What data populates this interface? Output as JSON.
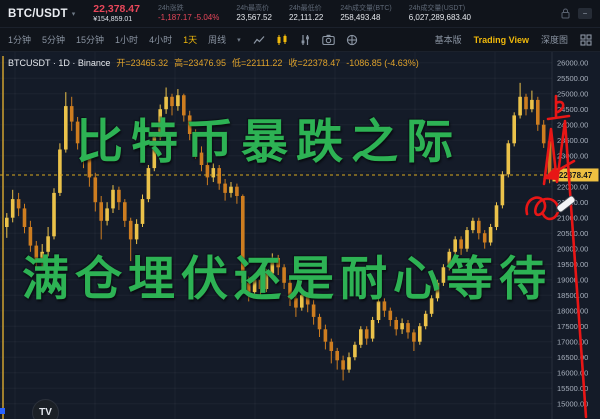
{
  "symbol_bar": {
    "pair": "BTC/USDT",
    "last_price": "22,378.47",
    "last_price_fiat": "¥154,859.01",
    "stats": [
      {
        "label": "24h涨跌",
        "value": "-1,187.17 -5.04%",
        "negative": true
      },
      {
        "label": "24h最高价",
        "value": "23,567.52",
        "negative": false
      },
      {
        "label": "24h最低价",
        "value": "22,111.22",
        "negative": false
      },
      {
        "label": "24h成交量(BTC)",
        "value": "258,493.48",
        "negative": false
      },
      {
        "label": "24h成交量(USDT)",
        "value": "6,027,289,683.40",
        "negative": false
      }
    ],
    "minimize_label": "−"
  },
  "toolbar": {
    "intervals": [
      {
        "label": "1分钟",
        "active": false
      },
      {
        "label": "5分钟",
        "active": false
      },
      {
        "label": "15分钟",
        "active": false
      },
      {
        "label": "1小时",
        "active": false
      },
      {
        "label": "4小时",
        "active": false
      },
      {
        "label": "1天",
        "active": true
      },
      {
        "label": "周线",
        "active": false
      }
    ],
    "view_modes": [
      {
        "label": "基本版",
        "active": false
      },
      {
        "label": "Trading View",
        "active": true
      },
      {
        "label": "深度图",
        "active": false
      }
    ]
  },
  "legend": {
    "title": "BTCUSDT · 1D · Binance",
    "ohlc": [
      "开=23465.32",
      "高=23476.95",
      "低=22111.22",
      "收=22378.47",
      "-1086.85 (-4.63%)"
    ]
  },
  "overlay_text": {
    "line1": "比特币暴跌之际",
    "line2": "满仓埋伏还是耐心等待"
  },
  "tv_logo": "TV",
  "colors": {
    "candle_up": "#ebc24a",
    "candle_down": "#cd7d20",
    "accent_yellow": "#f0b90b",
    "price_red": "#e8475a",
    "annotation_red": "#e81616",
    "overlay_green": "#2db254",
    "price_tag_bg": "#eec041"
  },
  "chart_data": {
    "type": "candlestick",
    "symbol": "BTCUSDT",
    "interval": "1D",
    "exchange": "Binance",
    "last_price": 22378.47,
    "price_tag": "22378.47",
    "y_axis": {
      "max": 26000,
      "min": 15000,
      "step": 500,
      "labels": [
        "26000.00",
        "25500.00",
        "25000.00",
        "24500.00",
        "24000.00",
        "23500.00",
        "23000.00",
        "22500.00",
        "22000.00",
        "21500.00",
        "21000.00",
        "20500.00",
        "20000.00",
        "19500.00",
        "19000.00",
        "18500.00",
        "18000.00",
        "17500.00",
        "17000.00",
        "16500.00",
        "16000.00",
        "15500.00",
        "15000.00"
      ]
    },
    "candles": [
      [
        20700,
        21150,
        20350,
        21000
      ],
      [
        21000,
        21900,
        20850,
        21600
      ],
      [
        21600,
        21800,
        21050,
        21300
      ],
      [
        21300,
        21450,
        20500,
        20700
      ],
      [
        20700,
        20900,
        19900,
        20100
      ],
      [
        20100,
        20250,
        19350,
        19600
      ],
      [
        19600,
        20150,
        19400,
        19900
      ],
      [
        19900,
        20700,
        19750,
        20400
      ],
      [
        20400,
        21950,
        20300,
        21800
      ],
      [
        21800,
        23400,
        21700,
        23200
      ],
      [
        23200,
        25050,
        23100,
        24600
      ],
      [
        24600,
        24900,
        23800,
        24100
      ],
      [
        24100,
        24250,
        23200,
        23400
      ],
      [
        23400,
        23600,
        22600,
        22900
      ],
      [
        22900,
        23050,
        22000,
        22300
      ],
      [
        22300,
        22450,
        21200,
        21500
      ],
      [
        21500,
        21700,
        20300,
        20900
      ],
      [
        20900,
        21500,
        20750,
        21300
      ],
      [
        21300,
        22050,
        21150,
        21900
      ],
      [
        21900,
        22000,
        21250,
        21500
      ],
      [
        21500,
        21600,
        20700,
        20900
      ],
      [
        20900,
        21000,
        19600,
        20300
      ],
      [
        20300,
        20950,
        20150,
        20800
      ],
      [
        20800,
        21750,
        20700,
        21600
      ],
      [
        21600,
        22700,
        21500,
        22600
      ],
      [
        22600,
        23700,
        22500,
        23600
      ],
      [
        23600,
        24650,
        23500,
        24500
      ],
      [
        24500,
        25200,
        24350,
        24900
      ],
      [
        24900,
        25000,
        24300,
        24600
      ],
      [
        24600,
        25150,
        24450,
        24950
      ],
      [
        24950,
        25000,
        24100,
        24300
      ],
      [
        24300,
        24450,
        23500,
        23700
      ],
      [
        23700,
        23850,
        22900,
        23100
      ],
      [
        23100,
        23300,
        22500,
        22700
      ],
      [
        22700,
        22850,
        22050,
        22300
      ],
      [
        22300,
        22750,
        22150,
        22600
      ],
      [
        22600,
        22700,
        21900,
        22100
      ],
      [
        22100,
        22250,
        21550,
        21800
      ],
      [
        21800,
        22150,
        21650,
        22000
      ],
      [
        22000,
        22100,
        21450,
        21700
      ],
      [
        21700,
        21750,
        18700,
        18900
      ],
      [
        18900,
        19100,
        18300,
        18600
      ],
      [
        18600,
        19150,
        18450,
        19000
      ],
      [
        19000,
        19150,
        18400,
        18700
      ],
      [
        18700,
        19350,
        18600,
        19200
      ],
      [
        19200,
        19850,
        19100,
        19700
      ],
      [
        19700,
        19800,
        19150,
        19400
      ],
      [
        19400,
        19500,
        18700,
        18900
      ],
      [
        18900,
        19050,
        18150,
        18400
      ],
      [
        18400,
        18550,
        17800,
        18100
      ],
      [
        18100,
        18650,
        18000,
        18500
      ],
      [
        18500,
        18600,
        17950,
        18200
      ],
      [
        18200,
        18350,
        17550,
        17800
      ],
      [
        17800,
        17900,
        17150,
        17400
      ],
      [
        17400,
        17550,
        16750,
        17000
      ],
      [
        17000,
        17100,
        16300,
        16700
      ],
      [
        16700,
        16800,
        16100,
        16400
      ],
      [
        16400,
        16550,
        15750,
        16100
      ],
      [
        16100,
        16650,
        16000,
        16500
      ],
      [
        16500,
        17000,
        16400,
        16900
      ],
      [
        16900,
        17500,
        16800,
        17400
      ],
      [
        17400,
        17500,
        16900,
        17100
      ],
      [
        17100,
        17800,
        17000,
        17700
      ],
      [
        17700,
        18400,
        17600,
        18300
      ],
      [
        18300,
        18400,
        17800,
        18000
      ],
      [
        18000,
        18100,
        17500,
        17700
      ],
      [
        17700,
        17800,
        17200,
        17400
      ],
      [
        17400,
        17750,
        17250,
        17600
      ],
      [
        17600,
        17700,
        17100,
        17300
      ],
      [
        17300,
        17400,
        16700,
        17000
      ],
      [
        17000,
        17600,
        16900,
        17500
      ],
      [
        17500,
        18000,
        17400,
        17900
      ],
      [
        17900,
        18500,
        17800,
        18400
      ],
      [
        18400,
        19000,
        18300,
        18900
      ],
      [
        18900,
        19500,
        18800,
        19400
      ],
      [
        19400,
        20000,
        19300,
        19900
      ],
      [
        19900,
        20400,
        19800,
        20300
      ],
      [
        20300,
        20400,
        19800,
        20000
      ],
      [
        20000,
        20700,
        19900,
        20600
      ],
      [
        20600,
        21000,
        20500,
        20900
      ],
      [
        20900,
        21000,
        20300,
        20500
      ],
      [
        20500,
        20600,
        20000,
        20200
      ],
      [
        20200,
        20800,
        20100,
        20700
      ],
      [
        20700,
        21500,
        20600,
        21400
      ],
      [
        21400,
        22500,
        21300,
        22400
      ],
      [
        22400,
        23500,
        22300,
        23400
      ],
      [
        23400,
        24400,
        23300,
        24300
      ],
      [
        24300,
        25350,
        24200,
        24900
      ],
      [
        24900,
        25000,
        24300,
        24500
      ],
      [
        24500,
        25100,
        24400,
        24800
      ],
      [
        24800,
        24900,
        23800,
        24000
      ],
      [
        24000,
        24150,
        23250,
        23400
      ],
      [
        23465.32,
        23476.95,
        22111.22,
        22378.47
      ]
    ]
  }
}
